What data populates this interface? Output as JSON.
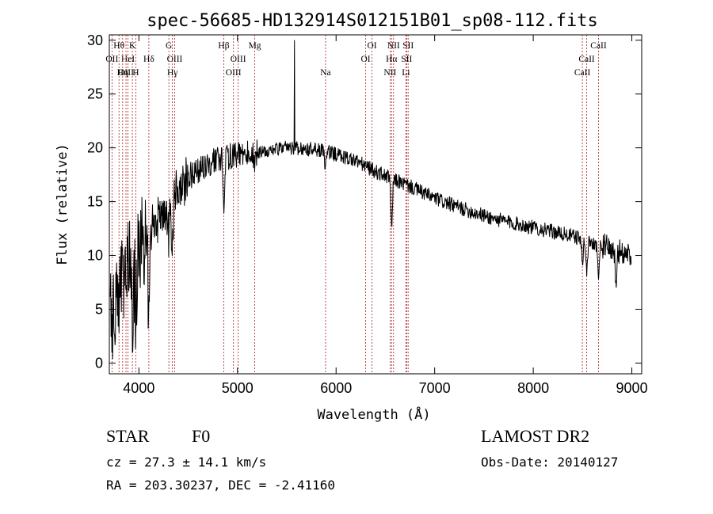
{
  "chart_data": {
    "type": "line",
    "title": "spec-56685-HD132914S012151B01_sp08-112.fits",
    "xlabel": "Wavelength (Å)",
    "ylabel": "Flux (relative)",
    "xlim": [
      3700,
      9100
    ],
    "ylim": [
      -1,
      30.5
    ],
    "xticks": [
      4000,
      5000,
      6000,
      7000,
      8000,
      9000
    ],
    "yticks": [
      0,
      5,
      10,
      15,
      20,
      25,
      30
    ],
    "continuum": [
      [
        3700,
        3.5
      ],
      [
        3800,
        6.5
      ],
      [
        3900,
        9.0
      ],
      [
        4000,
        11.0
      ],
      [
        4100,
        12.0
      ],
      [
        4200,
        13.5
      ],
      [
        4300,
        14.8
      ],
      [
        4400,
        16.0
      ],
      [
        4500,
        17.2
      ],
      [
        4600,
        18.0
      ],
      [
        4700,
        18.6
      ],
      [
        4800,
        19.0
      ],
      [
        4900,
        19.2
      ],
      [
        5000,
        19.3
      ],
      [
        5200,
        19.6
      ],
      [
        5400,
        19.9
      ],
      [
        5600,
        20.0
      ],
      [
        5800,
        19.8
      ],
      [
        6000,
        19.4
      ],
      [
        6200,
        18.8
      ],
      [
        6400,
        17.8
      ],
      [
        6600,
        17.0
      ],
      [
        6800,
        16.2
      ],
      [
        7000,
        15.3
      ],
      [
        7200,
        14.6
      ],
      [
        7400,
        14.0
      ],
      [
        7600,
        13.4
      ],
      [
        7800,
        13.0
      ],
      [
        8000,
        12.6
      ],
      [
        8200,
        12.2
      ],
      [
        8400,
        11.8
      ],
      [
        8600,
        11.2
      ],
      [
        8800,
        10.6
      ],
      [
        9000,
        10.0
      ]
    ],
    "absorption_features": [
      {
        "x": 3934,
        "depth": 6
      },
      {
        "x": 3968,
        "depth": 6
      },
      {
        "x": 4101,
        "depth": 7
      },
      {
        "x": 4300,
        "depth": 3
      },
      {
        "x": 4340,
        "depth": 5
      },
      {
        "x": 4861,
        "depth": 4
      },
      {
        "x": 5175,
        "depth": 1.5
      },
      {
        "x": 5890,
        "depth": 1.2
      },
      {
        "x": 6563,
        "depth": 4.5
      },
      {
        "x": 8498,
        "depth": 2
      },
      {
        "x": 8542,
        "depth": 3
      },
      {
        "x": 8662,
        "depth": 3
      },
      {
        "x": 8840,
        "depth": 4
      }
    ],
    "spike": {
      "x": 5577,
      "value": 30
    },
    "line_markers": [
      {
        "label": "Hθ",
        "x": 3798,
        "row": 0
      },
      {
        "label": "K",
        "x": 3934,
        "row": 0
      },
      {
        "label": "OII",
        "x": 3727,
        "row": 1
      },
      {
        "label": "HeI",
        "x": 3889,
        "row": 1
      },
      {
        "label": "Hδ",
        "x": 4101,
        "row": 1
      },
      {
        "label": "OIII",
        "x": 3869,
        "row": 2
      },
      {
        "label": "Hη",
        "x": 3835,
        "row": 2
      },
      {
        "label": "H",
        "x": 3968,
        "row": 2
      },
      {
        "label": "G",
        "x": 4304,
        "row": 0
      },
      {
        "label": "OIII",
        "x": 4363,
        "row": 1
      },
      {
        "label": "Hγ",
        "x": 4340,
        "row": 2
      },
      {
        "label": "Hβ",
        "x": 4861,
        "row": 0
      },
      {
        "label": "OIII",
        "x": 5007,
        "row": 1
      },
      {
        "label": "OIII",
        "x": 4959,
        "row": 2
      },
      {
        "label": "Mg",
        "x": 5175,
        "row": 0
      },
      {
        "label": "Na",
        "x": 5893,
        "row": 2
      },
      {
        "label": "OI",
        "x": 6364,
        "row": 0
      },
      {
        "label": "OI",
        "x": 6300,
        "row": 1
      },
      {
        "label": "NII",
        "x": 6583,
        "row": 0
      },
      {
        "label": "Hα",
        "x": 6563,
        "row": 1
      },
      {
        "label": "NII",
        "x": 6548,
        "row": 2
      },
      {
        "label": "SII",
        "x": 6731,
        "row": 0
      },
      {
        "label": "SII",
        "x": 6716,
        "row": 1
      },
      {
        "label": "Li",
        "x": 6708,
        "row": 2
      },
      {
        "label": "CaII",
        "x": 8662,
        "row": 0
      },
      {
        "label": "CaII",
        "x": 8542,
        "row": 1
      },
      {
        "label": "CaII",
        "x": 8498,
        "row": 2
      }
    ]
  },
  "info": {
    "class_label": "STAR",
    "subclass": "F0",
    "survey": "LAMOST DR2",
    "cz": "cz = 27.3 ± 14.1 km/s",
    "obs_date": "Obs-Date: 20140127",
    "coords": "RA = 203.30237, DEC =  -2.41160"
  }
}
